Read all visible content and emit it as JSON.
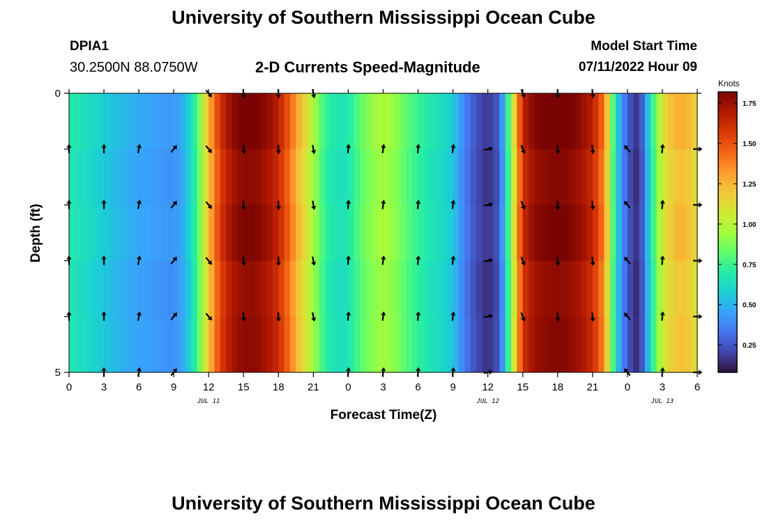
{
  "header": {
    "title": "University of Southern Mississippi Ocean Cube",
    "station_id": "DPIA1",
    "coordinates": "30.2500N  88.0750W",
    "subtitle": "2-D Currents Speed-Magnitude",
    "model_start_label": "Model Start Time",
    "model_start_value": "07/11/2022 Hour 09"
  },
  "footer": {
    "title": "University of Southern Mississippi Ocean Cube"
  },
  "chart_data": {
    "type": "heatmap",
    "title": "2-D Currents Speed-Magnitude",
    "xlabel": "Forecast Time(Z)",
    "ylabel": "Depth (ft)",
    "x_unit": "forecast hours from 2022-07-11 00Z",
    "x_range": [
      0,
      54
    ],
    "y_range": [
      0,
      5
    ],
    "x_ticks": [
      {
        "x": 0,
        "label": "0"
      },
      {
        "x": 3,
        "label": "3"
      },
      {
        "x": 6,
        "label": "6"
      },
      {
        "x": 9,
        "label": "9"
      },
      {
        "x": 12,
        "label": "12"
      },
      {
        "x": 15,
        "label": "15"
      },
      {
        "x": 18,
        "label": "18"
      },
      {
        "x": 21,
        "label": "21"
      },
      {
        "x": 24,
        "label": "0"
      },
      {
        "x": 27,
        "label": "3"
      },
      {
        "x": 30,
        "label": "6"
      },
      {
        "x": 33,
        "label": "9"
      },
      {
        "x": 36,
        "label": "12"
      },
      {
        "x": 39,
        "label": "15"
      },
      {
        "x": 42,
        "label": "18"
      },
      {
        "x": 45,
        "label": "21"
      },
      {
        "x": 48,
        "label": "0"
      },
      {
        "x": 51,
        "label": "3"
      },
      {
        "x": 54,
        "label": "6"
      }
    ],
    "y_ticks": [
      {
        "y": 0,
        "label": "0"
      },
      {
        "y": 5,
        "label": "5"
      }
    ],
    "date_labels": [
      {
        "x": 12,
        "label": "JUL 11"
      },
      {
        "x": 36,
        "label": "JUL 12"
      },
      {
        "x": 51,
        "label": "JUL 13"
      }
    ],
    "colorbar": {
      "unit": "Knots",
      "min": 0.08,
      "max": 1.82,
      "ticks": [
        {
          "value": 0.25,
          "label": "0.25"
        },
        {
          "value": 0.5,
          "label": "0.50"
        },
        {
          "value": 0.75,
          "label": "0.75"
        },
        {
          "value": 1.0,
          "label": "1.00"
        },
        {
          "value": 1.25,
          "label": "1.25"
        },
        {
          "value": 1.5,
          "label": "1.50"
        },
        {
          "value": 1.75,
          "label": "1.75"
        }
      ],
      "colors": [
        "#30123b",
        "#4145ab",
        "#4675ed",
        "#39a2fc",
        "#1bcfd4",
        "#24eca6",
        "#61fc6c",
        "#a4fc3b",
        "#d1e834",
        "#f3c63a",
        "#fe9b2d",
        "#f36315",
        "#d93806",
        "#b11901",
        "#7a0403"
      ]
    },
    "speed_profile_knots": [
      [
        0,
        0.68
      ],
      [
        1,
        0.64
      ],
      [
        2,
        0.6
      ],
      [
        3,
        0.56
      ],
      [
        4,
        0.52
      ],
      [
        5,
        0.48
      ],
      [
        6,
        0.46
      ],
      [
        7,
        0.44
      ],
      [
        8,
        0.42
      ],
      [
        9,
        0.4
      ],
      [
        10,
        0.5
      ],
      [
        11,
        0.75
      ],
      [
        12,
        1.2
      ],
      [
        13,
        1.55
      ],
      [
        14,
        1.72
      ],
      [
        15,
        1.78
      ],
      [
        16,
        1.78
      ],
      [
        17,
        1.72
      ],
      [
        18,
        1.62
      ],
      [
        19,
        1.4
      ],
      [
        20,
        1.15
      ],
      [
        21,
        0.95
      ],
      [
        22,
        0.72
      ],
      [
        23,
        0.64
      ],
      [
        24,
        0.66
      ],
      [
        25,
        0.8
      ],
      [
        26,
        0.9
      ],
      [
        27,
        0.95
      ],
      [
        28,
        0.9
      ],
      [
        29,
        0.8
      ],
      [
        30,
        0.72
      ],
      [
        31,
        0.66
      ],
      [
        32,
        0.62
      ],
      [
        33,
        0.55
      ],
      [
        34,
        0.35
      ],
      [
        35,
        0.22
      ],
      [
        36,
        0.15
      ],
      [
        37,
        0.25
      ],
      [
        38,
        0.9
      ],
      [
        39,
        1.6
      ],
      [
        40,
        1.75
      ],
      [
        41,
        1.78
      ],
      [
        42,
        1.8
      ],
      [
        43,
        1.78
      ],
      [
        44,
        1.72
      ],
      [
        45,
        1.62
      ],
      [
        46,
        1.35
      ],
      [
        47,
        0.6
      ],
      [
        48,
        0.25
      ],
      [
        49,
        0.12
      ],
      [
        50,
        0.65
      ],
      [
        51,
        1.05
      ],
      [
        52,
        1.2
      ],
      [
        53,
        1.22
      ],
      [
        54,
        1.1
      ]
    ],
    "depth_rows": [
      0.5,
      1.5,
      2.5,
      3.5,
      4.5
    ],
    "arrows": [
      {
        "x": 0,
        "dir": 0,
        "rows": [
          1,
          2,
          3,
          4
        ]
      },
      {
        "x": 3,
        "dir": 0,
        "rows": [
          1,
          2,
          3,
          4,
          5
        ]
      },
      {
        "x": 6,
        "dir": 10,
        "rows": [
          1,
          2,
          3,
          4,
          5
        ]
      },
      {
        "x": 9,
        "dir": 40,
        "rows": [
          1,
          2,
          3,
          4,
          5
        ]
      },
      {
        "x": 12,
        "dir": 140,
        "rows": [
          0,
          1,
          2,
          3,
          4
        ]
      },
      {
        "x": 15,
        "dir": 175,
        "rows": [
          0,
          1,
          2,
          3,
          4
        ]
      },
      {
        "x": 18,
        "dir": 178,
        "rows": [
          0,
          1,
          2,
          3,
          4
        ]
      },
      {
        "x": 21,
        "dir": 170,
        "rows": [
          0,
          1,
          2,
          3,
          4
        ]
      },
      {
        "x": 24,
        "dir": 5,
        "rows": [
          1,
          2,
          3,
          4,
          5
        ]
      },
      {
        "x": 27,
        "dir": 8,
        "rows": [
          1,
          2,
          3,
          4,
          5
        ]
      },
      {
        "x": 30,
        "dir": 5,
        "rows": [
          1,
          2,
          3,
          4,
          5
        ]
      },
      {
        "x": 33,
        "dir": 8,
        "rows": [
          1,
          2,
          3,
          4,
          5
        ]
      },
      {
        "x": 36,
        "dir": 80,
        "rows": [
          1,
          2,
          3,
          4,
          5
        ]
      },
      {
        "x": 39,
        "dir": 160,
        "rows": [
          0,
          1,
          2,
          3,
          4
        ]
      },
      {
        "x": 42,
        "dir": 178,
        "rows": [
          0,
          1,
          2,
          3,
          4
        ]
      },
      {
        "x": 45,
        "dir": 175,
        "rows": [
          0,
          1,
          2,
          3,
          4
        ]
      },
      {
        "x": 48,
        "dir": 320,
        "rows": [
          1,
          2,
          3,
          4,
          5
        ]
      },
      {
        "x": 51,
        "dir": 5,
        "rows": [
          1,
          2,
          3,
          4,
          5
        ]
      },
      {
        "x": 54,
        "dir": 90,
        "rows": [
          1,
          2,
          3,
          4,
          5
        ]
      }
    ]
  }
}
